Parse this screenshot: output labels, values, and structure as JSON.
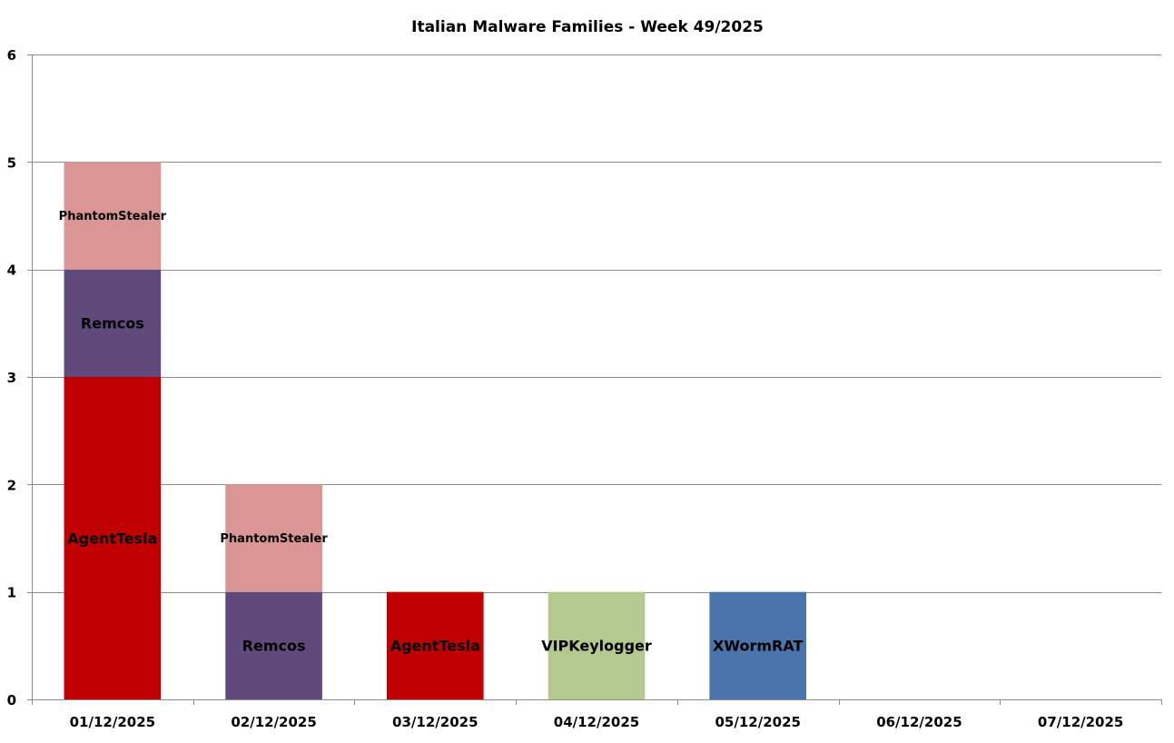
{
  "chart_data": {
    "type": "bar",
    "stacked": true,
    "title": "Italian Malware Families - Week 49/2025",
    "xlabel": "",
    "ylabel": "",
    "ylim": [
      0,
      6
    ],
    "yticks": [
      0,
      1,
      2,
      3,
      4,
      5,
      6
    ],
    "grid": true,
    "legend": "none",
    "categories": [
      "01/12/2025",
      "02/12/2025",
      "03/12/2025",
      "04/12/2025",
      "05/12/2025",
      "06/12/2025",
      "07/12/2025"
    ],
    "series": [
      {
        "name": "AgentTesla",
        "color": "#c00000",
        "values": [
          3,
          0,
          1,
          0,
          0,
          0,
          0
        ]
      },
      {
        "name": "Remcos",
        "color": "#604a7b",
        "values": [
          1,
          1,
          0,
          0,
          0,
          0,
          0
        ]
      },
      {
        "name": "PhantomStealer",
        "color": "#d99694",
        "values": [
          1,
          1,
          0,
          0,
          0,
          0,
          0
        ]
      },
      {
        "name": "VIPKeylogger",
        "color": "#b3c98d",
        "values": [
          0,
          0,
          0,
          1,
          0,
          0,
          0
        ]
      },
      {
        "name": "XWormRAT",
        "color": "#4a74ab",
        "values": [
          0,
          0,
          0,
          0,
          1,
          0,
          0
        ]
      }
    ]
  }
}
